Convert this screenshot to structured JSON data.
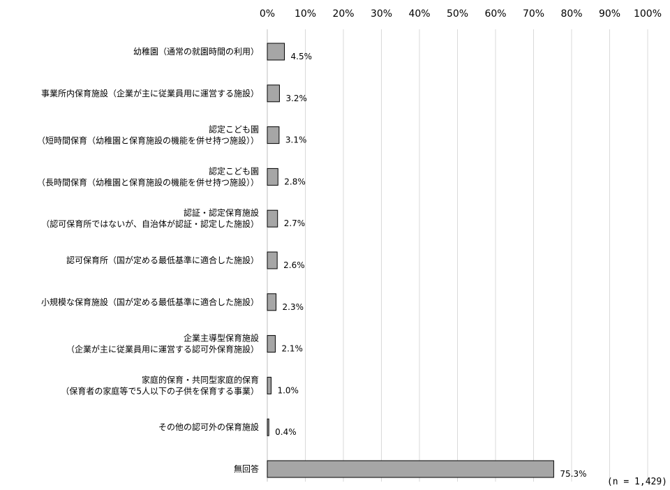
{
  "chart_data": {
    "type": "bar",
    "orientation": "horizontal",
    "categories": [
      [
        "幼稚園（通常の就園時間の利用）"
      ],
      [
        "事業所内保育施設（企業が主に従業員用に運営する施設）"
      ],
      [
        "認定こども園",
        "（短時間保育（幼稚園と保育施設の機能を併せ持つ施設））"
      ],
      [
        "認定こども園",
        "（長時間保育（幼稚園と保育施設の機能を併せ持つ施設））"
      ],
      [
        "認証・認定保育施設",
        "（認可保育所ではないが、自治体が認証・認定した施設）"
      ],
      [
        "認可保育所（国が定める最低基準に適合した施設）"
      ],
      [
        "小規模な保育施設（国が定める最低基準に適合した施設）"
      ],
      [
        "企業主導型保育施設",
        "（企業が主に従業員用に運営する認可外保育施設）"
      ],
      [
        "家庭的保育・共同型家庭的保育",
        "（保育者の家庭等で5人以下の子供を保育する事業）"
      ],
      [
        "その他の認可外の保育施設"
      ],
      [
        "無回答"
      ]
    ],
    "values": [
      4.5,
      3.2,
      3.1,
      2.8,
      2.7,
      2.6,
      2.3,
      2.1,
      1.0,
      0.4,
      75.3
    ],
    "value_labels": [
      "4.5%",
      "3.2%",
      "3.1%",
      "2.8%",
      "2.7%",
      "2.6%",
      "2.3%",
      "2.1%",
      "1.0%",
      "0.4%",
      "75.3%"
    ],
    "x_ticks": [
      "0%",
      "10%",
      "20%",
      "30%",
      "40%",
      "50%",
      "60%",
      "70%",
      "80%",
      "90%",
      "100%"
    ],
    "xlim": [
      0,
      100
    ],
    "x_axis_position": "top",
    "grid": true,
    "bar_color": "#a6a6a6",
    "bar_edge_color": "#000000",
    "grid_color": "#d9d9d9",
    "note": "(n = 1,429)"
  }
}
